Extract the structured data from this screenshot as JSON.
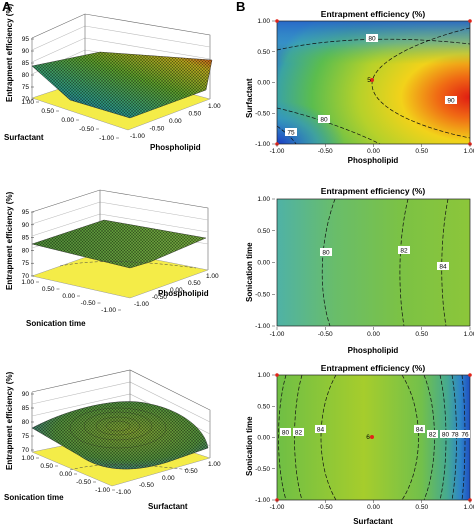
{
  "panels": {
    "left": "A",
    "right": "B"
  },
  "colors": {
    "low": "#1f3fc4",
    "mid": "#6bbf3a",
    "high": "#e01d12",
    "floor": "#f4ec48",
    "contour": "#111111"
  },
  "chart_data": [
    {
      "type": "surface3d",
      "panel": "A",
      "zlabel": "Entrapment efficiency (%)",
      "xlabel": "Phospholipid",
      "ylabel": "Surfactant",
      "zticks": [
        "95",
        "90",
        "85",
        "80",
        "75",
        "70"
      ],
      "xticks": [
        "1.00",
        "0.50",
        "0.00",
        "-0.50",
        "-1.00"
      ],
      "yticks": [
        "1.00",
        "0.50",
        "0.00",
        "-0.50",
        "-1.00"
      ],
      "zlim": [
        70,
        95
      ]
    },
    {
      "type": "contour",
      "panel": "B",
      "title": "Entrapment efficiency (%)",
      "xlabel": "Phospholipid",
      "ylabel": "Surfactant",
      "xticks": [
        "-1.00",
        "-0.50",
        "0.00",
        "0.50",
        "1.00"
      ],
      "yticks": [
        "1.00",
        "0.50",
        "0.00",
        "-0.50",
        "-1.00"
      ],
      "xlim": [
        -1,
        1
      ],
      "ylim": [
        -1,
        1
      ],
      "contour_labels": [
        "80",
        "80",
        "75",
        "90"
      ],
      "design_point_label": "5"
    },
    {
      "type": "surface3d",
      "panel": "A",
      "zlabel": "Entrapment efficiency (%)",
      "xlabel": "Phospholipid",
      "ylabel": "Sonication time",
      "zticks": [
        "95",
        "90",
        "85",
        "80",
        "75",
        "70"
      ],
      "xticks": [
        "1.00",
        "0.50",
        "0.00",
        "-0.50",
        "-1.00"
      ],
      "yticks": [
        "1.00",
        "0.50",
        "0.00",
        "-0.50",
        "-1.00"
      ],
      "zlim": [
        70,
        95
      ]
    },
    {
      "type": "contour",
      "panel": "B",
      "title": "Entrapment efficiency (%)",
      "xlabel": "Phospholipid",
      "ylabel": "Sonication time",
      "xticks": [
        "-1.00",
        "-0.50",
        "0.00",
        "0.50",
        "1.00"
      ],
      "yticks": [
        "1.00",
        "0.50",
        "0.00",
        "-0.50",
        "-1.00"
      ],
      "xlim": [
        -1,
        1
      ],
      "ylim": [
        -1,
        1
      ],
      "contour_labels": [
        "80",
        "82",
        "84"
      ]
    },
    {
      "type": "surface3d",
      "panel": "A",
      "zlabel": "Entrapment efficiency (%)",
      "xlabel": "Surfactant",
      "ylabel": "Sonication time",
      "zticks": [
        "90",
        "85",
        "80",
        "75",
        "70"
      ],
      "xticks": [
        "1.00",
        "0.50",
        "0.00",
        "-0.50",
        "-1.00"
      ],
      "yticks": [
        "1.00",
        "0.50",
        "0.00",
        "-0.50",
        "-1.00"
      ],
      "zlim": [
        70,
        90
      ]
    },
    {
      "type": "contour",
      "panel": "B",
      "title": "Entrapment efficiency (%)",
      "xlabel": "Surfactant",
      "ylabel": "Sonication time",
      "xticks": [
        "-1.00",
        "-0.50",
        "0.00",
        "0.50",
        "1.00"
      ],
      "yticks": [
        "1.00",
        "0.50",
        "0.00",
        "-0.50",
        "-1.00"
      ],
      "xlim": [
        -1,
        1
      ],
      "ylim": [
        -1,
        1
      ],
      "contour_labels": [
        "80",
        "82",
        "84",
        "84",
        "82",
        "80",
        "78",
        "76"
      ],
      "design_point_label": "6"
    }
  ]
}
